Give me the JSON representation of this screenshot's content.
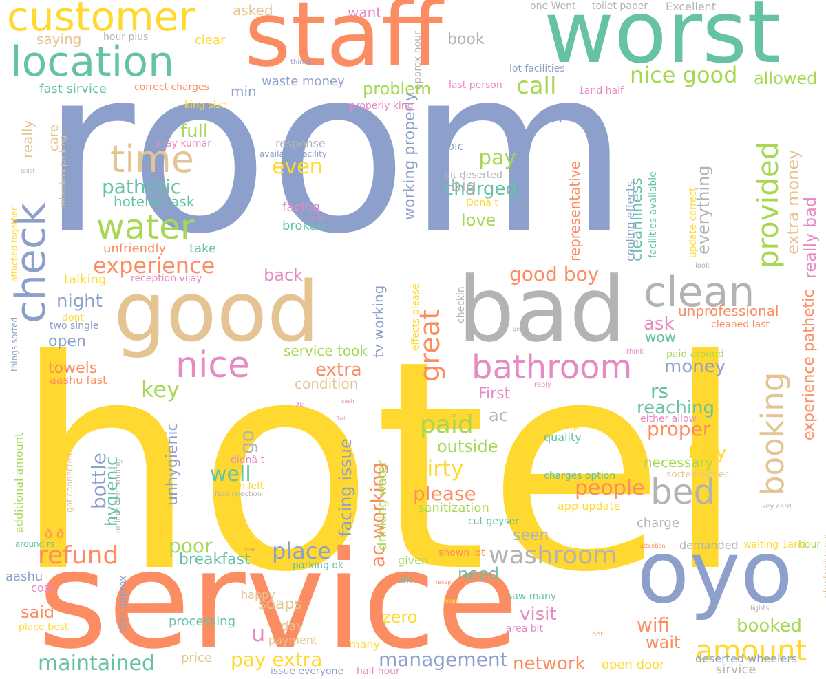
{
  "palette": {
    "blue": "#8da0cb",
    "yellow": "#ffd92f",
    "orange": "#fc8d62",
    "teal": "#66c2a5",
    "tan": "#e5c494",
    "pink": "#e78ac3",
    "green": "#a6d854",
    "gray": "#b3b3b3",
    "background": "#ffffff"
  },
  "words": [
    {
      "text": "room",
      "color": "blue"
    },
    {
      "text": "hotel",
      "color": "yellow"
    },
    {
      "text": "service",
      "color": "orange"
    },
    {
      "text": "staff",
      "color": "orange"
    },
    {
      "text": "worst",
      "color": "teal"
    },
    {
      "text": "bad",
      "color": "gray"
    },
    {
      "text": "good",
      "color": "tan"
    },
    {
      "text": "oyo",
      "color": "blue"
    },
    {
      "text": "customer",
      "color": "yellow"
    },
    {
      "text": "location",
      "color": "teal"
    },
    {
      "text": "check",
      "color": "blue"
    },
    {
      "text": "clean",
      "color": "gray"
    },
    {
      "text": "booking",
      "color": "tan"
    },
    {
      "text": "bathroom",
      "color": "pink"
    },
    {
      "text": "time",
      "color": "tan"
    },
    {
      "text": "water",
      "color": "green"
    },
    {
      "text": "nice",
      "color": "pink"
    },
    {
      "text": "bed",
      "color": "gray"
    },
    {
      "text": "provided",
      "color": "green"
    },
    {
      "text": "great",
      "color": "orange"
    },
    {
      "text": "experience",
      "color": "orange"
    },
    {
      "text": "amount",
      "color": "yellow"
    },
    {
      "text": "refund",
      "color": "orange"
    },
    {
      "text": "washroom",
      "color": "gray"
    },
    {
      "text": "place",
      "color": "blue"
    },
    {
      "text": "maintained",
      "color": "teal"
    },
    {
      "text": "management",
      "color": "blue"
    },
    {
      "text": "network",
      "color": "orange"
    },
    {
      "text": "nice good",
      "color": "green"
    },
    {
      "text": "extra money",
      "color": "tan"
    },
    {
      "text": "really bad",
      "color": "pink"
    },
    {
      "text": "experience pathetic",
      "color": "orange"
    },
    {
      "text": "everything",
      "color": "gray"
    },
    {
      "text": "cleanliness",
      "color": "teal"
    },
    {
      "text": "representative",
      "color": "orange"
    },
    {
      "text": "call",
      "color": "green"
    },
    {
      "text": "allowed",
      "color": "green"
    },
    {
      "text": "pay",
      "color": "green"
    },
    {
      "text": "charged",
      "color": "teal"
    },
    {
      "text": "love",
      "color": "green"
    },
    {
      "text": "even",
      "color": "yellow"
    },
    {
      "text": "pathetic",
      "color": "teal"
    },
    {
      "text": "hotelier ask",
      "color": "teal"
    },
    {
      "text": "full",
      "color": "green"
    },
    {
      "text": "problem",
      "color": "green"
    },
    {
      "text": "n",
      "color": "blue"
    },
    {
      "text": "working properly",
      "color": "blue"
    },
    {
      "text": "ac working",
      "color": "orange"
    },
    {
      "text": "facing issue",
      "color": "blue"
    },
    {
      "text": "tv working",
      "color": "blue"
    },
    {
      "text": "key",
      "color": "green"
    },
    {
      "text": "towels",
      "color": "orange"
    },
    {
      "text": "open",
      "color": "blue"
    },
    {
      "text": "night",
      "color": "blue"
    },
    {
      "text": "back",
      "color": "pink"
    },
    {
      "text": "good boy",
      "color": "orange"
    },
    {
      "text": "unprofessional",
      "color": "orange"
    },
    {
      "text": "ask",
      "color": "pink"
    },
    {
      "text": "wow",
      "color": "teal"
    },
    {
      "text": "money",
      "color": "blue"
    },
    {
      "text": "rs",
      "color": "teal"
    },
    {
      "text": "reaching",
      "color": "teal"
    },
    {
      "text": "proper",
      "color": "orange"
    },
    {
      "text": "fully",
      "color": "yellow"
    },
    {
      "text": "necessary",
      "color": "green"
    },
    {
      "text": "people",
      "color": "orange"
    },
    {
      "text": "paid",
      "color": "green"
    },
    {
      "text": "outside",
      "color": "green"
    },
    {
      "text": "dirty",
      "color": "yellow"
    },
    {
      "text": "please",
      "color": "orange"
    },
    {
      "text": "sanitization",
      "color": "green"
    },
    {
      "text": "ac",
      "color": "gray"
    },
    {
      "text": "First",
      "color": "pink"
    },
    {
      "text": "extra",
      "color": "orange"
    },
    {
      "text": "condition",
      "color": "tan"
    },
    {
      "text": "service took",
      "color": "green"
    },
    {
      "text": "bottle",
      "color": "blue"
    },
    {
      "text": "hygienic",
      "color": "teal"
    },
    {
      "text": "unhygienic",
      "color": "blue"
    },
    {
      "text": "well",
      "color": "teal"
    },
    {
      "text": "go",
      "color": "gray"
    },
    {
      "text": "poor",
      "color": "green"
    },
    {
      "text": "breakfast",
      "color": "teal"
    },
    {
      "text": "u",
      "color": "pink"
    },
    {
      "text": "soaps",
      "color": "tan"
    },
    {
      "text": "pay extra",
      "color": "yellow"
    },
    {
      "text": "visit",
      "color": "pink"
    },
    {
      "text": "zero",
      "color": "yellow"
    },
    {
      "text": "need",
      "color": "teal"
    },
    {
      "text": "wifi",
      "color": "orange"
    },
    {
      "text": "booked",
      "color": "green"
    },
    {
      "text": "wait",
      "color": "orange"
    },
    {
      "text": "seen",
      "color": "gray"
    },
    {
      "text": "said",
      "color": "orange"
    },
    {
      "text": "processing",
      "color": "teal"
    },
    {
      "text": "big",
      "color": "gray"
    },
    {
      "text": "broken",
      "color": "teal"
    },
    {
      "text": "facing",
      "color": "pink"
    },
    {
      "text": "take",
      "color": "teal"
    },
    {
      "text": "unfriendly",
      "color": "orange"
    },
    {
      "text": "talking",
      "color": "yellow"
    },
    {
      "text": "min",
      "color": "blue"
    },
    {
      "text": "waste money",
      "color": "blue"
    },
    {
      "text": "book",
      "color": "gray"
    },
    {
      "text": "want",
      "color": "pink"
    },
    {
      "text": "asked",
      "color": "tan"
    },
    {
      "text": "saying",
      "color": "tan"
    },
    {
      "text": "clear",
      "color": "yellow"
    },
    {
      "text": "fast sirvice",
      "color": "teal"
    },
    {
      "text": "correct charges",
      "color": "orange"
    },
    {
      "text": "king size",
      "color": "yellow"
    },
    {
      "text": "vijay kumar",
      "color": "pink"
    },
    {
      "text": "reception vijay",
      "color": "pink"
    },
    {
      "text": "two single",
      "color": "blue"
    },
    {
      "text": "dont",
      "color": "yellow"
    },
    {
      "text": "aashu fast",
      "color": "orange"
    },
    {
      "text": "really",
      "color": "tan"
    },
    {
      "text": "care",
      "color": "tan"
    },
    {
      "text": "additional amount",
      "color": "green"
    },
    {
      "text": "things sorted",
      "color": "blue"
    },
    {
      "text": "attached together",
      "color": "yellow"
    },
    {
      "text": "wheelers parking",
      "color": "tan"
    },
    {
      "text": "got connected",
      "color": "tan"
    },
    {
      "text": "online demanding",
      "color": "gray"
    },
    {
      "text": "person left",
      "color": "yellow"
    },
    {
      "text": "face rejection",
      "color": "gray"
    },
    {
      "text": "didnâ t",
      "color": "pink"
    },
    {
      "text": "app",
      "color": "yellow"
    },
    {
      "text": "drinking water",
      "color": "green"
    },
    {
      "text": "parking ok",
      "color": "teal"
    },
    {
      "text": "given",
      "color": "green"
    },
    {
      "text": "ok",
      "color": "teal"
    },
    {
      "text": "effects please",
      "color": "yellow"
    },
    {
      "text": "checkin",
      "color": "gray"
    },
    {
      "text": "response",
      "color": "gray"
    },
    {
      "text": "available facility",
      "color": "blue"
    },
    {
      "text": "pic",
      "color": "blue"
    },
    {
      "text": "bit deserted",
      "color": "gray"
    },
    {
      "text": "Donâ t",
      "color": "yellow"
    },
    {
      "text": "inform",
      "color": "pink"
    },
    {
      "text": "properly king",
      "color": "pink"
    },
    {
      "text": "last person",
      "color": "pink"
    },
    {
      "text": "approx hour",
      "color": "gray"
    },
    {
      "text": "one Went",
      "color": "gray"
    },
    {
      "text": "toilet paper",
      "color": "gray"
    },
    {
      "text": "Excellent",
      "color": "gray"
    },
    {
      "text": "lot facilities",
      "color": "blue"
    },
    {
      "text": "1and half",
      "color": "pink"
    },
    {
      "text": "hour plus",
      "color": "gray"
    },
    {
      "text": "things",
      "color": "blue"
    },
    {
      "text": "cooling effects",
      "color": "blue"
    },
    {
      "text": "facilities available",
      "color": "teal"
    },
    {
      "text": "update correct",
      "color": "yellow"
    },
    {
      "text": "look",
      "color": "gray"
    },
    {
      "text": "cleaned last",
      "color": "orange"
    },
    {
      "text": "got",
      "color": "gray"
    },
    {
      "text": "think",
      "color": "pink"
    },
    {
      "text": "paid around",
      "color": "green"
    },
    {
      "text": "reply",
      "color": "pink"
    },
    {
      "text": "either allow",
      "color": "pink"
    },
    {
      "text": "help",
      "color": "yellow"
    },
    {
      "text": "quality",
      "color": "teal"
    },
    {
      "text": "charges option",
      "color": "teal"
    },
    {
      "text": "sorted either",
      "color": "tan"
    },
    {
      "text": "app update",
      "color": "yellow"
    },
    {
      "text": "charge",
      "color": "gray"
    },
    {
      "text": "cut geyser",
      "color": "teal"
    },
    {
      "text": "demanded",
      "color": "gray"
    },
    {
      "text": "waiting 1and",
      "color": "yellow"
    },
    {
      "text": "hour",
      "color": "green"
    },
    {
      "text": "attention",
      "color": "orange"
    },
    {
      "text": "key card",
      "color": "gray"
    },
    {
      "text": "electricity cut",
      "color": "tan"
    },
    {
      "text": "lights",
      "color": "gray"
    },
    {
      "text": "shown lot",
      "color": "orange"
    },
    {
      "text": "reception",
      "color": "orange"
    },
    {
      "text": "single",
      "color": "yellow"
    },
    {
      "text": "saw many",
      "color": "teal"
    },
    {
      "text": "area bit",
      "color": "pink"
    },
    {
      "text": "hot",
      "color": "orange"
    },
    {
      "text": "deserted wheelers",
      "color": "blue"
    },
    {
      "text": "open door",
      "color": "yellow"
    },
    {
      "text": "sirvice",
      "color": "gray"
    },
    {
      "text": "half hour",
      "color": "pink"
    },
    {
      "text": "issue everyone",
      "color": "blue"
    },
    {
      "text": "many",
      "color": "yellow"
    },
    {
      "text": "payment",
      "color": "tan"
    },
    {
      "text": "day",
      "color": "tan"
    },
    {
      "text": "happy",
      "color": "tan"
    },
    {
      "text": "price",
      "color": "tan"
    },
    {
      "text": "took approx",
      "color": "blue"
    },
    {
      "text": "place best",
      "color": "yellow"
    },
    {
      "text": "cost",
      "color": "pink"
    },
    {
      "text": "aashu",
      "color": "blue"
    },
    {
      "text": "around rs",
      "color": "teal"
    },
    {
      "text": "ð ð",
      "color": "orange"
    },
    {
      "text": "one",
      "color": "orange"
    },
    {
      "text": "toilet",
      "color": "gray"
    },
    {
      "text": "cash",
      "color": "pink"
    },
    {
      "text": "3rd",
      "color": "pink"
    },
    {
      "text": "Ala",
      "color": "pink"
    }
  ]
}
